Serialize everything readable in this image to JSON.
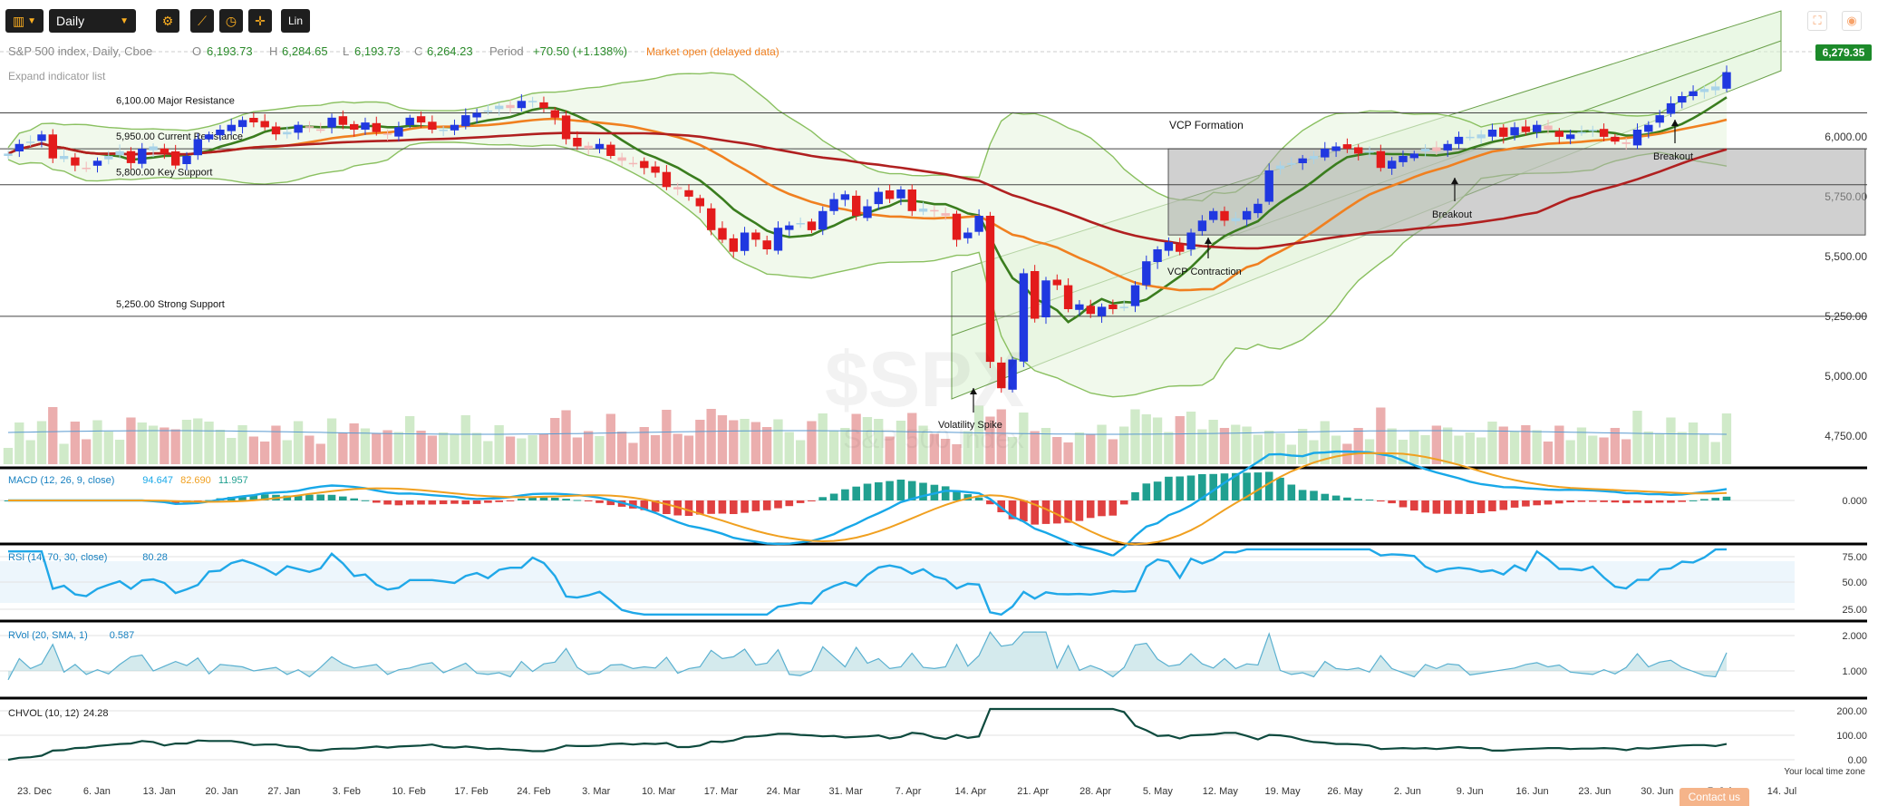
{
  "toolbar": {
    "chart_type_icon": "candlestick-icon",
    "interval": "Daily",
    "tools": [
      "gear-icon",
      "crosshair-draw-icon",
      "clock-icon",
      "cursor-icon"
    ],
    "scale": "Lin"
  },
  "right_icons": [
    "fullscreen-icon",
    "camera-icon"
  ],
  "contact_label": "Contact us",
  "timezone_label": "Your local time zone",
  "header": {
    "title": "S&P 500 index, Daily, Cboe",
    "o_label": "O",
    "o_val": "6,193.73",
    "h_label": "H",
    "h_val": "6,284.65",
    "l_label": "L",
    "l_val": "6,193.73",
    "c_label": "C",
    "c_val": "6,264.23",
    "period_label": "Period",
    "period_val": "+70.50 (+1.138%)",
    "status": "Market open (delayed data)",
    "expand": "Expand indicator list"
  },
  "last_price": "6,279.35",
  "watermark": {
    "big": "$SPX",
    "small": "S&P 500 Index"
  },
  "colors": {
    "up": "#2038e0",
    "down": "#e31b1b",
    "up_light": "#a8d3e8",
    "down_light": "#f3b7b7",
    "sma_short": "#3a7d1e",
    "sma_mid": "#f08020",
    "sma_long": "#b02020",
    "bollinger": "#8ac060",
    "channel": "#6aa04a",
    "macd_line": "#18a8e8",
    "signal_line": "#f0a020",
    "hist_pos": "#20a090",
    "hist_neg": "#e04040",
    "rsi": "#20a8e8",
    "rvol": "#5ab0d0",
    "chvol": "#0e4a3e",
    "price_tag": "#1c8a2a"
  },
  "chart_data": [
    {
      "type": "candlestick",
      "title": "S&P 500 index, Daily, Cboe",
      "y_range": [
        4640,
        6420
      ],
      "y_ticks": [
        "4,750.00",
        "5,000.00",
        "5,250.00",
        "5,500.00",
        "5,750.00",
        "6,000.00"
      ],
      "x_tick_labels": [
        "23. Dec",
        "6. Jan",
        "13. Jan",
        "20. Jan",
        "27. Jan",
        "3. Feb",
        "10. Feb",
        "17. Feb",
        "24. Feb",
        "3. Mar",
        "10. Mar",
        "17. Mar",
        "24. Mar",
        "31. Mar",
        "7. Apr",
        "14. Apr",
        "21. Apr",
        "28. Apr",
        "5. May",
        "12. May",
        "19. May",
        "26. May",
        "2. Jun",
        "9. Jun",
        "16. Jun",
        "23. Jun",
        "30. Jun",
        "7. Jul",
        "14. Jul"
      ],
      "closes": [
        5930,
        5970,
        5980,
        6010,
        5910,
        5920,
        5880,
        5870,
        5900,
        5920,
        5940,
        5890,
        5950,
        5960,
        5930,
        5880,
        5920,
        5990,
        6010,
        6030,
        6050,
        6070,
        6060,
        6040,
        6010,
        6020,
        6050,
        6040,
        6030,
        6080,
        6050,
        6030,
        6060,
        6020,
        6010,
        6040,
        6080,
        6060,
        6030,
        6030,
        6050,
        6090,
        6100,
        6110,
        6130,
        6120,
        6150,
        6150,
        6120,
        6080,
        5990,
        5960,
        5950,
        5970,
        5920,
        5900,
        5890,
        5870,
        5850,
        5790,
        5780,
        5750,
        5710,
        5610,
        5570,
        5520,
        5600,
        5570,
        5530,
        5620,
        5630,
        5640,
        5610,
        5690,
        5740,
        5760,
        5670,
        5710,
        5770,
        5740,
        5780,
        5690,
        5700,
        5690,
        5670,
        5570,
        5600,
        5670,
        5060,
        4950,
        5070,
        5430,
        5240,
        5400,
        5380,
        5280,
        5300,
        5260,
        5290,
        5280,
        5290,
        5380,
        5480,
        5530,
        5560,
        5520,
        5600,
        5650,
        5690,
        5650,
        5660,
        5690,
        5720,
        5860,
        5880,
        5890,
        5910,
        5920,
        5950,
        5960,
        5950,
        5930,
        5940,
        5870,
        5900,
        5920,
        5930,
        5950,
        5940,
        5970,
        6000,
        6000,
        6010,
        6030,
        6000,
        6040,
        6020,
        6050,
        6030,
        6000,
        6010,
        6020,
        6030,
        6000,
        5980,
        5970,
        6030,
        6050,
        6090,
        6140,
        6170,
        6190,
        6200,
        6210,
        6270
      ],
      "horizontal_levels": [
        {
          "price": 6100,
          "label": "6,100.00",
          "text": "Major Resistance"
        },
        {
          "price": 5950,
          "label": "5,950.00",
          "text": "Current Resistance"
        },
        {
          "price": 5800,
          "label": "5,800.00",
          "text": "Key Support"
        },
        {
          "price": 5250,
          "label": "5,250.00",
          "text": "Strong Support"
        }
      ],
      "vcp_box": {
        "from_price": 5950,
        "to_price": 5590
      },
      "annotations": [
        "VCP Formation",
        "VCP Contraction",
        "Volatility Spike",
        "Breakout",
        "Breakout"
      ],
      "indicators": [
        "SMA short",
        "SMA mid",
        "SMA long",
        "Bollinger Bands",
        "Regression channel",
        "Volume"
      ]
    },
    {
      "type": "line",
      "title": "MACD (12, 26, 9, close)",
      "values_label": [
        "94.647",
        "82.690",
        "11.957"
      ],
      "y_ticks": [
        "0.000"
      ]
    },
    {
      "type": "line",
      "title": "RSI (14, 70, 30, close)",
      "value_label": "80.28",
      "y_ticks": [
        "75.00",
        "50.00",
        "25.00"
      ]
    },
    {
      "type": "area",
      "title": "RVol (20, SMA, 1)",
      "value_label": "0.587",
      "y_ticks": [
        "2.000",
        "1.000"
      ]
    },
    {
      "type": "line",
      "title": "CHVOL (10, 12)",
      "value_label": "24.28",
      "y_ticks": [
        "200.00",
        "100.00",
        "0.00"
      ]
    }
  ]
}
